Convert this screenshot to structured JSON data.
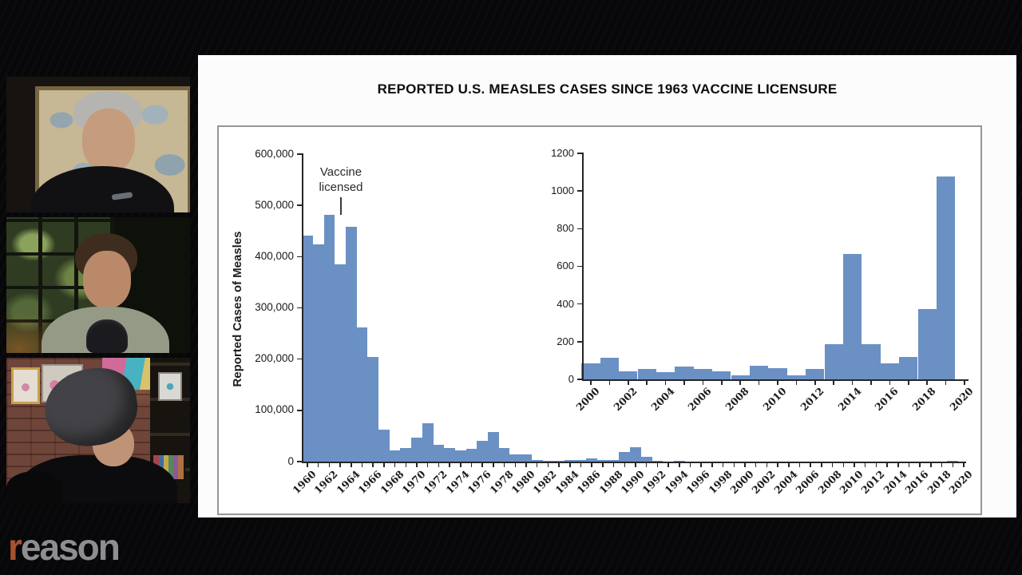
{
  "brand": {
    "logo": {
      "accent": "r",
      "rest": "eason"
    }
  },
  "slide": {
    "title": "REPORTED U.S. MEASLES CASES SINCE 1963 VACCINE LICENSURE"
  },
  "chart_data": [
    {
      "id": "main",
      "type": "bar",
      "title": "REPORTED U.S. MEASLES CASES SINCE 1963 VACCINE LICENSURE",
      "xlabel": "",
      "ylabel": "Reported Cases of Measles",
      "bar_color": "#6b90c4",
      "annotation": {
        "line1": "Vaccine",
        "line2": "licensed",
        "year": 1963
      },
      "x_start": 1960,
      "x_end": 2020,
      "label_every": 2,
      "ylim": [
        0,
        600000
      ],
      "grid": false,
      "yticks": [
        0,
        100000,
        200000,
        300000,
        400000,
        500000,
        600000
      ],
      "ytick_labels": [
        "0",
        "100,000",
        "200,000",
        "300,000",
        "400,000",
        "500,000",
        "600,000"
      ],
      "xtick_labels": [
        "1960",
        "1962",
        "1964",
        "1966",
        "1968",
        "1970",
        "1972",
        "1974",
        "1976",
        "1978",
        "1980",
        "1982",
        "1984",
        "1986",
        "1988",
        "1990",
        "1992",
        "1994",
        "1996",
        "1998",
        "2000",
        "2002",
        "2004",
        "2006",
        "2008",
        "2010",
        "2012",
        "2014",
        "2016",
        "2018",
        "2020"
      ],
      "years": [
        1960,
        1961,
        1962,
        1963,
        1964,
        1965,
        1966,
        1967,
        1968,
        1969,
        1970,
        1971,
        1972,
        1973,
        1974,
        1975,
        1976,
        1977,
        1978,
        1979,
        1980,
        1981,
        1982,
        1983,
        1984,
        1985,
        1986,
        1987,
        1988,
        1989,
        1990,
        1991,
        1992,
        1993,
        1994,
        1995,
        1996,
        1997,
        1998,
        1999,
        2000,
        2001,
        2002,
        2003,
        2004,
        2005,
        2006,
        2007,
        2008,
        2009,
        2010,
        2011,
        2012,
        2013,
        2014,
        2015,
        2016,
        2017,
        2018,
        2019
      ],
      "values": [
        441703,
        423919,
        481530,
        385156,
        458083,
        261904,
        204136,
        62705,
        22231,
        25826,
        47351,
        75290,
        32275,
        26690,
        22094,
        24374,
        41126,
        57345,
        26871,
        13597,
        13506,
        3124,
        1714,
        1497,
        2587,
        2822,
        6282,
        3655,
        3396,
        18193,
        27786,
        9643,
        2237,
        312,
        963,
        309,
        508,
        138,
        100,
        100,
        86,
        116,
        44,
        56,
        37,
        66,
        55,
        43,
        20,
        70,
        60,
        20,
        55,
        187,
        667,
        188,
        86,
        120,
        372,
        1077
      ]
    },
    {
      "id": "inset",
      "type": "bar",
      "title": "",
      "xlabel": "",
      "ylabel": "",
      "bar_color": "#6b90c4",
      "layout_hint": "inset at top right of main chart",
      "x_start": 2000,
      "x_end": 2020,
      "label_every": 2,
      "ylim": [
        0,
        1200
      ],
      "grid": false,
      "yticks": [
        0,
        200,
        400,
        600,
        800,
        1000,
        1200
      ],
      "ytick_labels": [
        "0",
        "200",
        "400",
        "600",
        "800",
        "1000",
        "1200"
      ],
      "xtick_labels": [
        "2000",
        "2002",
        "2004",
        "2006",
        "2008",
        "2010",
        "2012",
        "2014",
        "2016",
        "2018",
        "2020"
      ],
      "years": [
        2000,
        2001,
        2002,
        2003,
        2004,
        2005,
        2006,
        2007,
        2008,
        2009,
        2010,
        2011,
        2012,
        2013,
        2014,
        2015,
        2016,
        2017,
        2018,
        2019
      ],
      "values": [
        86,
        116,
        44,
        56,
        37,
        66,
        55,
        43,
        20,
        70,
        60,
        20,
        55,
        187,
        667,
        188,
        86,
        120,
        372,
        1077
      ]
    }
  ]
}
